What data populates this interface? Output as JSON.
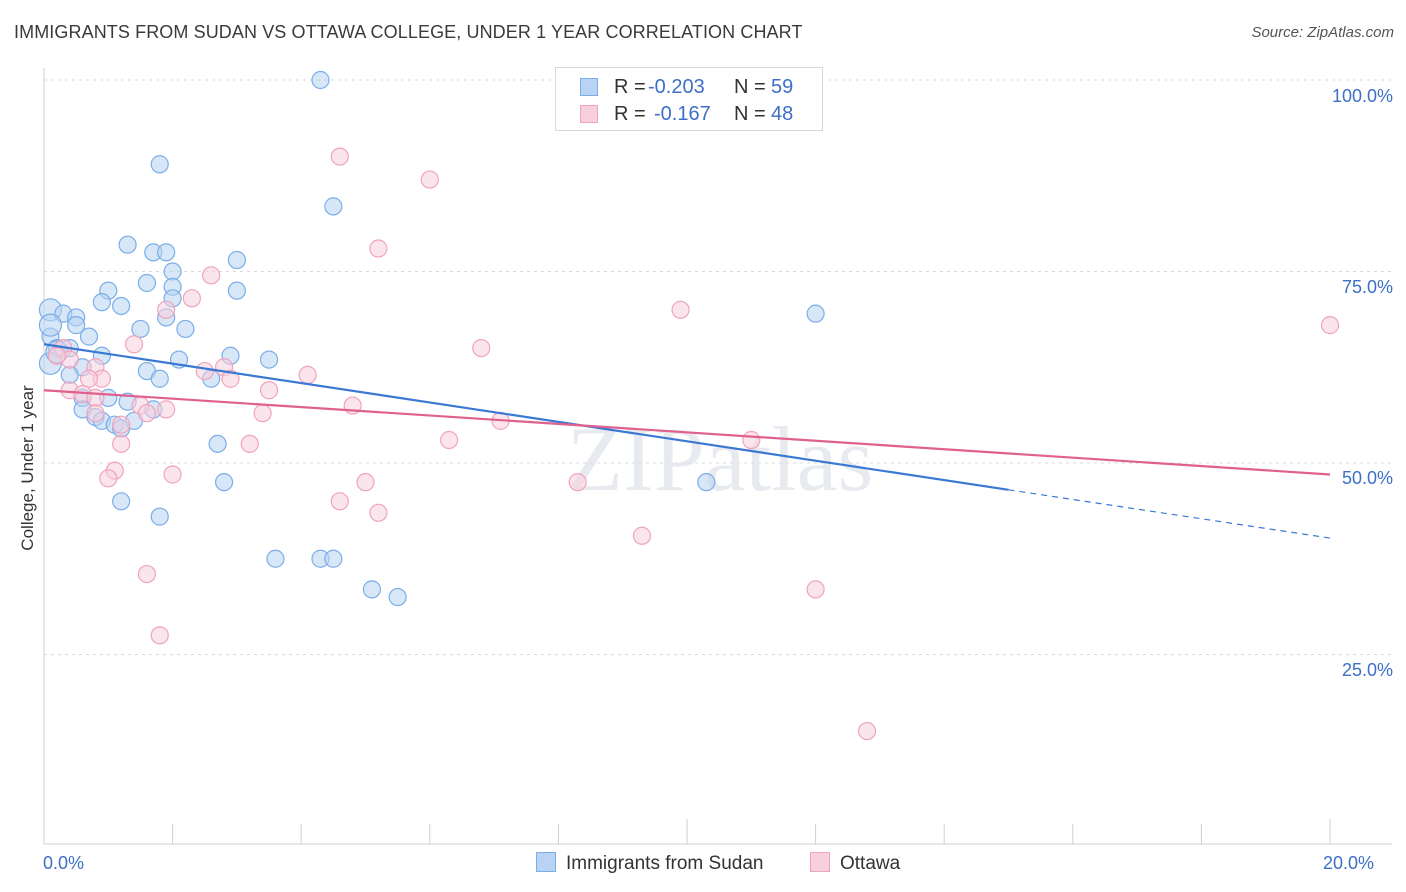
{
  "chart_data": {
    "type": "scatter",
    "title": "IMMIGRANTS FROM SUDAN VS OTTAWA COLLEGE, UNDER 1 YEAR CORRELATION CHART",
    "source": "Source: ZipAtlas.com",
    "xlabel": "",
    "ylabel": "College, Under 1 year",
    "xlim": [
      0,
      20
    ],
    "ylim": [
      0,
      103
    ],
    "y_ticks": [
      {
        "value": 25,
        "label": "25.0%"
      },
      {
        "value": 50,
        "label": "50.0%"
      },
      {
        "value": 75,
        "label": "75.0%"
      },
      {
        "value": 100,
        "label": "100.0%"
      }
    ],
    "x_ticks": [
      {
        "value": 0,
        "label": "0.0%"
      },
      {
        "value": 20,
        "label": "20.0%"
      }
    ],
    "grid": true,
    "watermark": "ZIPatlas",
    "legend": [
      {
        "r_label": "R =",
        "r_value": "-0.203",
        "n_label": "N =",
        "n_value": "59"
      },
      {
        "r_label": "R =",
        "r_value": "-0.167",
        "n_label": "N =",
        "n_value": "48"
      }
    ],
    "series": [
      {
        "name": "Immigrants from Sudan",
        "color": "#7aaee8",
        "fill": "#b8d3f3",
        "line_color": "#3a78d4",
        "trend": {
          "x0": 0,
          "y0": 65.5,
          "x1": 15,
          "y1": 46.5,
          "dash_to_x": 20,
          "dash_to_y": 40.2
        },
        "points": [
          [
            4.3,
            100
          ],
          [
            1.8,
            89
          ],
          [
            4.5,
            83.5
          ],
          [
            1.3,
            78.5
          ],
          [
            1.7,
            77.5
          ],
          [
            1.9,
            77.5
          ],
          [
            3.0,
            76.5
          ],
          [
            2.0,
            75
          ],
          [
            1.6,
            73.5
          ],
          [
            2.0,
            73
          ],
          [
            3.0,
            72.5
          ],
          [
            1.0,
            72.5
          ],
          [
            2.0,
            71.5
          ],
          [
            0.9,
            71
          ],
          [
            1.2,
            70.5
          ],
          [
            0.1,
            70
          ],
          [
            0.3,
            69.5
          ],
          [
            0.5,
            69
          ],
          [
            1.9,
            69
          ],
          [
            12.0,
            69.5
          ],
          [
            0.5,
            68
          ],
          [
            1.5,
            67.5
          ],
          [
            2.2,
            67.5
          ],
          [
            0.1,
            66.5
          ],
          [
            0.7,
            66.5
          ],
          [
            0.2,
            65
          ],
          [
            0.4,
            65
          ],
          [
            0.9,
            64
          ],
          [
            2.1,
            63.5
          ],
          [
            2.9,
            64
          ],
          [
            3.5,
            63.5
          ],
          [
            0.1,
            63
          ],
          [
            0.6,
            62.5
          ],
          [
            1.6,
            62
          ],
          [
            0.4,
            61.5
          ],
          [
            1.8,
            61
          ],
          [
            2.6,
            61
          ],
          [
            0.6,
            58.5
          ],
          [
            1.0,
            58.5
          ],
          [
            1.3,
            58
          ],
          [
            0.6,
            57
          ],
          [
            1.7,
            57
          ],
          [
            0.8,
            56
          ],
          [
            0.9,
            55.5
          ],
          [
            1.1,
            55
          ],
          [
            1.2,
            54.5
          ],
          [
            1.4,
            55.5
          ],
          [
            2.7,
            52.5
          ],
          [
            10.3,
            47.5
          ],
          [
            2.8,
            47.5
          ],
          [
            1.2,
            45
          ],
          [
            1.8,
            43
          ],
          [
            3.6,
            37.5
          ],
          [
            4.3,
            37.5
          ],
          [
            4.5,
            37.5
          ],
          [
            5.1,
            33.5
          ],
          [
            5.5,
            32.5
          ],
          [
            0.1,
            68
          ],
          [
            0.2,
            64.5
          ]
        ]
      },
      {
        "name": "Ottawa",
        "color": "#f0a3bd",
        "fill": "#f8cfdc",
        "line_color": "#e0608e",
        "trend": {
          "x0": 0,
          "y0": 59.5,
          "x1": 20,
          "y1": 48.5
        },
        "points": [
          [
            4.6,
            90
          ],
          [
            6.0,
            87
          ],
          [
            5.2,
            78
          ],
          [
            2.6,
            74.5
          ],
          [
            2.3,
            71.5
          ],
          [
            1.9,
            70
          ],
          [
            9.9,
            70
          ],
          [
            20.0,
            68
          ],
          [
            1.4,
            65.5
          ],
          [
            6.8,
            65
          ],
          [
            0.3,
            65
          ],
          [
            0.4,
            63.5
          ],
          [
            0.8,
            62.5
          ],
          [
            2.8,
            62.5
          ],
          [
            2.5,
            62
          ],
          [
            2.9,
            61
          ],
          [
            4.1,
            61.5
          ],
          [
            0.9,
            61
          ],
          [
            3.5,
            59.5
          ],
          [
            0.4,
            59.5
          ],
          [
            0.6,
            59
          ],
          [
            0.8,
            58.5
          ],
          [
            1.5,
            57.5
          ],
          [
            1.9,
            57
          ],
          [
            4.8,
            57.5
          ],
          [
            1.6,
            56.5
          ],
          [
            3.4,
            56.5
          ],
          [
            0.8,
            56.5
          ],
          [
            7.1,
            55.5
          ],
          [
            1.2,
            55
          ],
          [
            11.0,
            53
          ],
          [
            6.3,
            53
          ],
          [
            3.2,
            52.5
          ],
          [
            1.2,
            52.5
          ],
          [
            1.1,
            49
          ],
          [
            2.0,
            48.5
          ],
          [
            1.0,
            48
          ],
          [
            5.0,
            47.5
          ],
          [
            8.3,
            47.5
          ],
          [
            4.6,
            45
          ],
          [
            5.2,
            43.5
          ],
          [
            9.3,
            40.5
          ],
          [
            1.6,
            35.5
          ],
          [
            12.0,
            33.5
          ],
          [
            1.8,
            27.5
          ],
          [
            12.8,
            15
          ],
          [
            0.2,
            64
          ],
          [
            0.7,
            61
          ]
        ]
      }
    ]
  }
}
